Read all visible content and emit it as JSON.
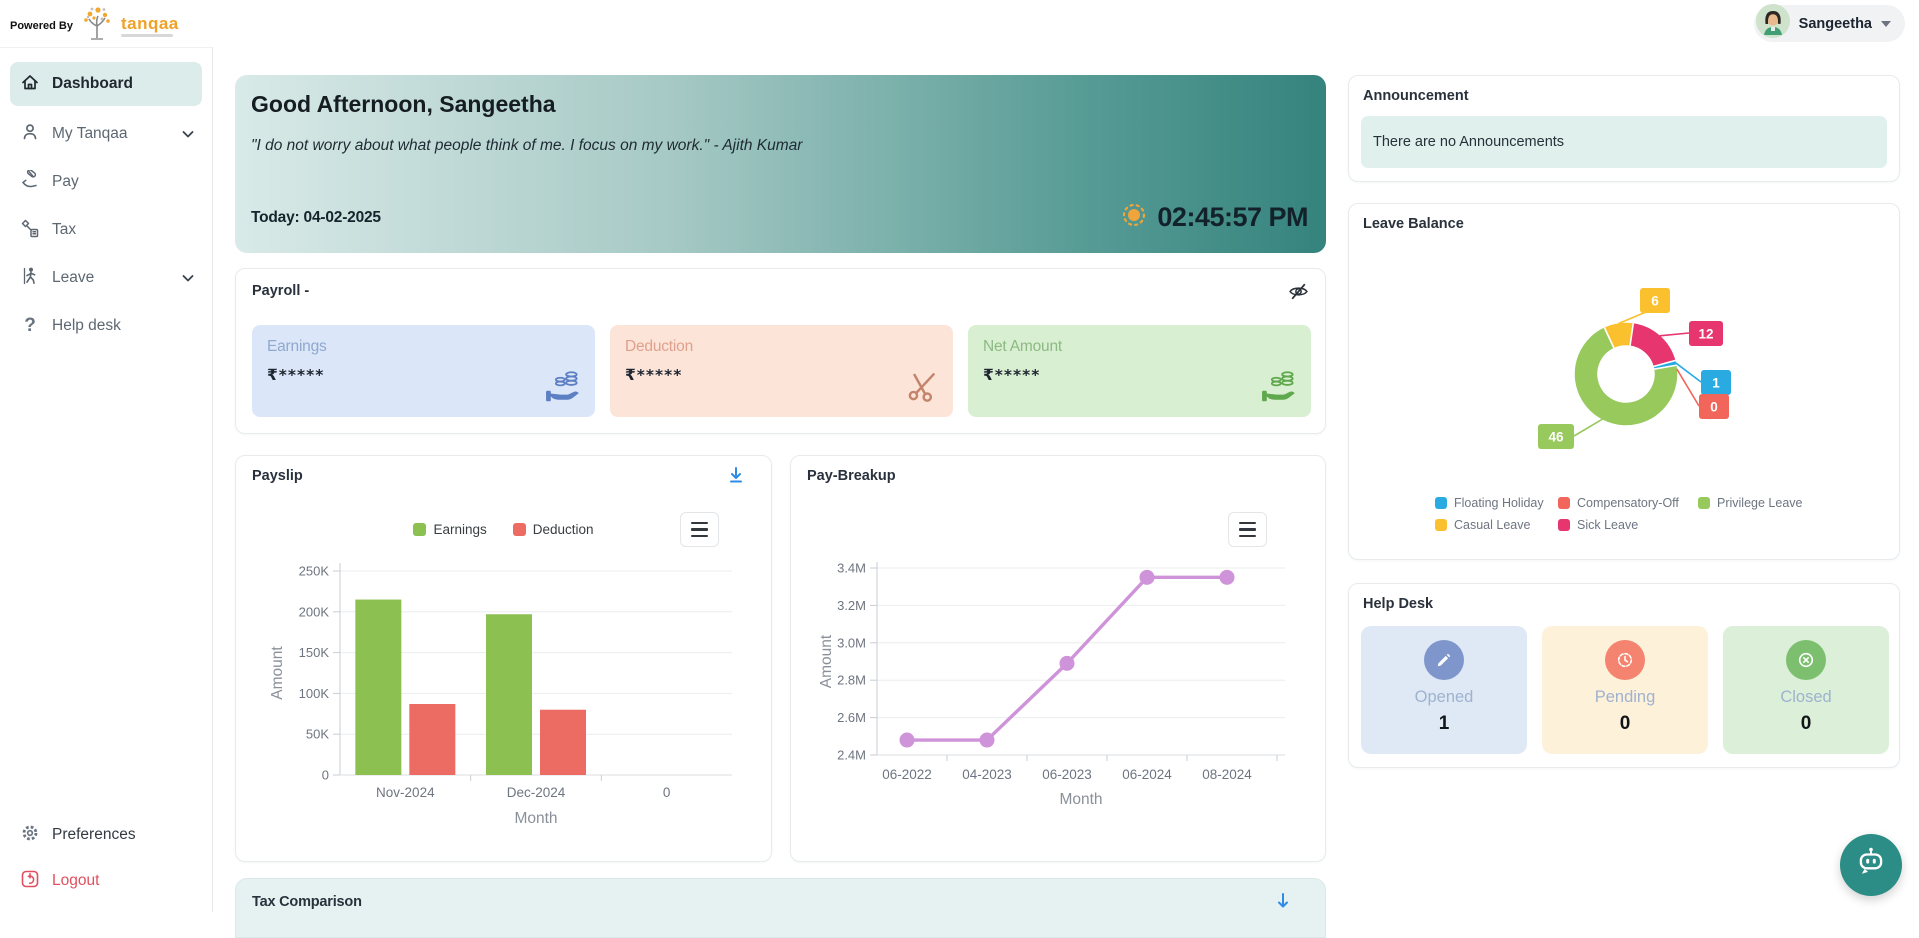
{
  "topbar": {
    "powered_by": "Powered By",
    "brand": "tanqaa",
    "user_name": "Sangeetha"
  },
  "sidebar": {
    "items": [
      {
        "label": "Dashboard",
        "icon": "home-icon",
        "active": true
      },
      {
        "label": "My Tanqaa",
        "icon": "person-icon",
        "expandable": true
      },
      {
        "label": "Pay",
        "icon": "pay-icon"
      },
      {
        "label": "Tax",
        "icon": "tax-icon"
      },
      {
        "label": "Leave",
        "icon": "leave-icon",
        "expandable": true
      },
      {
        "label": "Help desk",
        "icon": "help-icon"
      }
    ],
    "preferences_label": "Preferences",
    "logout_label": "Logout"
  },
  "greeting": {
    "title": "Good Afternoon, Sangeetha",
    "quote": "\"I do not worry about what people think of me. I focus on my work.\" - Ajith Kumar",
    "today": "Today: 04-02-2025",
    "time": "02:45:57 PM",
    "weather_icon": "sun-icon"
  },
  "payroll": {
    "title": "Payroll -",
    "cards": [
      {
        "label": "Earnings",
        "value": "₹*****",
        "icon": "hand-coins-icon",
        "bg": "#dbe7f8"
      },
      {
        "label": "Deduction",
        "value": "₹*****",
        "icon": "scissors-icon",
        "bg": "#fce4d9"
      },
      {
        "label": "Net Amount",
        "value": "₹*****",
        "icon": "hand-coins-icon",
        "bg": "#d9efd2"
      }
    ]
  },
  "announcement": {
    "title": "Announcement",
    "message": "There are no Announcements"
  },
  "leave_balance": {
    "title": "Leave Balance"
  },
  "help_desk": {
    "title": "Help Desk",
    "tiles": [
      {
        "label": "Opened",
        "value": "1",
        "icon": "pencil-icon",
        "accent": "#7e96cb"
      },
      {
        "label": "Pending",
        "value": "0",
        "icon": "clock-icon",
        "accent": "#f4836f"
      },
      {
        "label": "Closed",
        "value": "0",
        "icon": "x-circle-icon",
        "accent": "#7cc06f"
      }
    ]
  },
  "tax_comparison": {
    "title": "Tax Comparison"
  },
  "chart_data": [
    {
      "id": "payslip",
      "type": "bar",
      "title": "Payslip",
      "categories": [
        "Nov-2024",
        "Dec-2024",
        "0"
      ],
      "series": [
        {
          "name": "Earnings",
          "color": "#8CC152",
          "values": [
            215000,
            197000,
            null
          ]
        },
        {
          "name": "Deduction",
          "color": "#EC6B63",
          "values": [
            87000,
            80000,
            null
          ]
        }
      ],
      "xlabel": "Month",
      "ylabel": "Amount",
      "ylim": [
        0,
        250000
      ],
      "yticks": [
        {
          "value": 0,
          "label": "0"
        },
        {
          "value": 50000,
          "label": "50K"
        },
        {
          "value": 100000,
          "label": "100K"
        },
        {
          "value": 150000,
          "label": "150K"
        },
        {
          "value": 200000,
          "label": "200K"
        },
        {
          "value": 250000,
          "label": "250K"
        }
      ],
      "grid": true,
      "legend_position": "top"
    },
    {
      "id": "pay_breakup",
      "type": "line",
      "title": "Pay-Breakup",
      "x": [
        "06-2022",
        "04-2023",
        "06-2023",
        "06-2024",
        "08-2024"
      ],
      "values": [
        2480000,
        2480000,
        2890000,
        3350000,
        3350000
      ],
      "color": "#CE93D8",
      "xlabel": "Month",
      "ylabel": "Amount",
      "ylim": [
        2400000,
        3400000
      ],
      "yticks": [
        {
          "value": 2400000,
          "label": "2.4M"
        },
        {
          "value": 2600000,
          "label": "2.6M"
        },
        {
          "value": 2800000,
          "label": "2.8M"
        },
        {
          "value": 3000000,
          "label": "3.0M"
        },
        {
          "value": 3200000,
          "label": "3.2M"
        },
        {
          "value": 3400000,
          "label": "3.4M"
        }
      ],
      "grid": true
    },
    {
      "id": "leave_balance",
      "type": "pie",
      "donut": true,
      "title": "Leave Balance",
      "slices": [
        {
          "label": "Casual Leave",
          "value": 6,
          "color": "#FBC02D"
        },
        {
          "label": "Sick Leave",
          "value": 12,
          "color": "#E7356F"
        },
        {
          "label": "Floating Holiday",
          "value": 1,
          "color": "#29ABE2"
        },
        {
          "label": "Compensatory-Off",
          "value": 0,
          "color": "#F2655A"
        },
        {
          "label": "Privilege Leave",
          "value": 46,
          "color": "#97C95C"
        }
      ],
      "legend": [
        {
          "label": "Floating Holiday",
          "color": "#29ABE2"
        },
        {
          "label": "Compensatory-Off",
          "color": "#F2655A"
        },
        {
          "label": "Privilege Leave",
          "color": "#97C95C"
        },
        {
          "label": "Casual Leave",
          "color": "#FBC02D"
        },
        {
          "label": "Sick Leave",
          "color": "#E7356F"
        }
      ],
      "legend_position": "bottom"
    }
  ]
}
